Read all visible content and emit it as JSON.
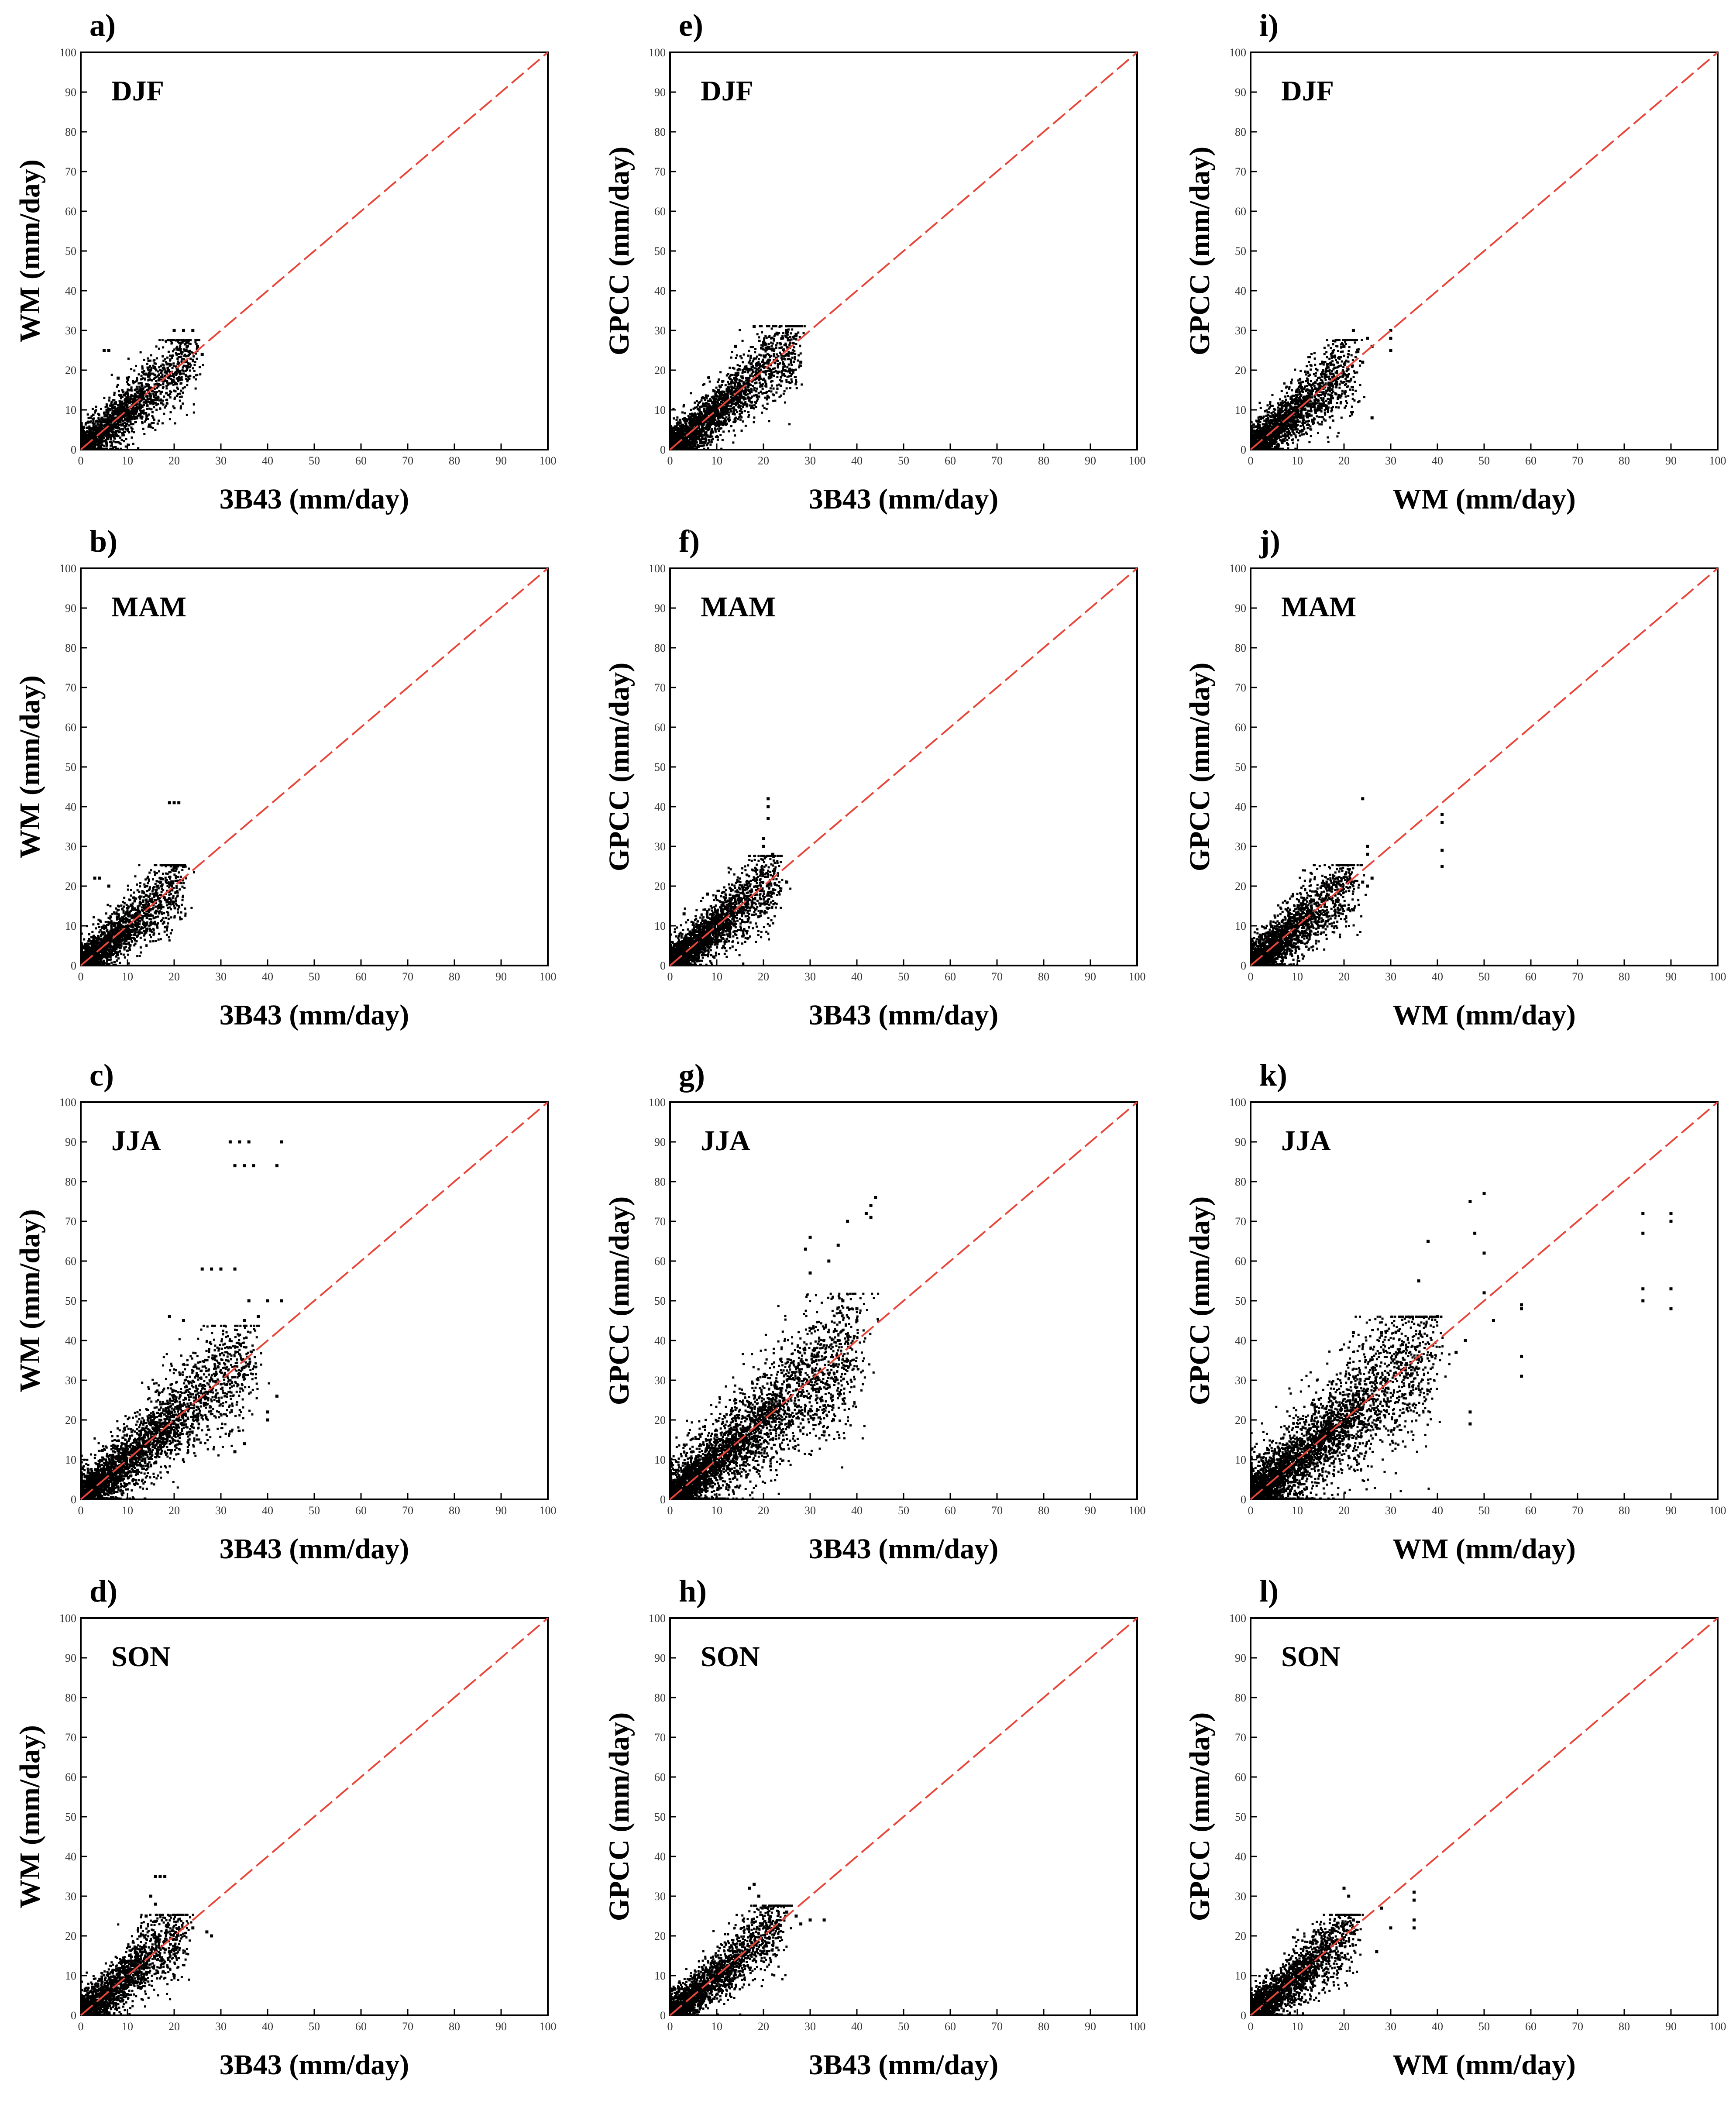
{
  "figure": {
    "description_units": "mm/day",
    "identity_line_color": "#e8463a",
    "point_color": "#000000"
  },
  "chart_data": [
    {
      "type": "scatter",
      "panel_label": "a)",
      "season": "DJF",
      "xlabel": "3B43 (mm/day)",
      "ylabel": "WM (mm/day)",
      "xlim": [
        0,
        100
      ],
      "ylim": [
        0,
        100
      ],
      "xticks": [
        "0",
        "10",
        "20",
        "30",
        "40",
        "50",
        "60",
        "70",
        "80",
        "90",
        "100"
      ],
      "yticks": [
        "0",
        "10",
        "20",
        "30",
        "40",
        "50",
        "60",
        "70",
        "80",
        "90",
        "100"
      ],
      "identity_line": true,
      "cloud": {
        "max_x": 24,
        "max_y": 24,
        "spread": 3.5,
        "points": 1400
      },
      "notable_points": [
        [
          20,
          30
        ],
        [
          22,
          30
        ],
        [
          24,
          30
        ],
        [
          5,
          25
        ],
        [
          6,
          25
        ],
        [
          25,
          26
        ],
        [
          26,
          24
        ],
        [
          14,
          19
        ],
        [
          8,
          18
        ],
        [
          10,
          18
        ]
      ]
    },
    {
      "type": "scatter",
      "panel_label": "b)",
      "season": "MAM",
      "xlabel": "3B43 (mm/day)",
      "ylabel": "WM (mm/day)",
      "xlim": [
        0,
        100
      ],
      "ylim": [
        0,
        100
      ],
      "xticks": [
        "0",
        "10",
        "20",
        "30",
        "40",
        "50",
        "60",
        "70",
        "80",
        "90",
        "100"
      ],
      "yticks": [
        "0",
        "10",
        "20",
        "30",
        "40",
        "50",
        "60",
        "70",
        "80",
        "90",
        "100"
      ],
      "identity_line": true,
      "cloud": {
        "max_x": 22,
        "max_y": 22,
        "spread": 3.2,
        "points": 1400
      },
      "notable_points": [
        [
          19,
          41
        ],
        [
          20,
          41
        ],
        [
          21,
          41
        ],
        [
          3,
          22
        ],
        [
          4,
          22
        ],
        [
          6,
          20
        ],
        [
          20,
          25
        ],
        [
          22,
          25
        ],
        [
          21,
          21
        ]
      ]
    },
    {
      "type": "scatter",
      "panel_label": "c)",
      "season": "JJA",
      "xlabel": "3B43 (mm/day)",
      "ylabel": "WM (mm/day)",
      "xlim": [
        0,
        100
      ],
      "ylim": [
        0,
        100
      ],
      "xticks": [
        "0",
        "10",
        "20",
        "30",
        "40",
        "50",
        "60",
        "70",
        "80",
        "90",
        "100"
      ],
      "yticks": [
        "0",
        "10",
        "20",
        "30",
        "40",
        "50",
        "60",
        "70",
        "80",
        "90",
        "100"
      ],
      "identity_line": true,
      "cloud": {
        "max_x": 36,
        "max_y": 38,
        "spread": 5.0,
        "points": 2200
      },
      "notable_points": [
        [
          32,
          90
        ],
        [
          34,
          90
        ],
        [
          36,
          90
        ],
        [
          43,
          90
        ],
        [
          33,
          84
        ],
        [
          35,
          84
        ],
        [
          37,
          84
        ],
        [
          42,
          84
        ],
        [
          26,
          58
        ],
        [
          28,
          58
        ],
        [
          30,
          58
        ],
        [
          33,
          58
        ],
        [
          36,
          50
        ],
        [
          40,
          50
        ],
        [
          43,
          50
        ],
        [
          19,
          46
        ],
        [
          38,
          46
        ],
        [
          35,
          45
        ],
        [
          42,
          26
        ],
        [
          40,
          22
        ],
        [
          35,
          14
        ],
        [
          40,
          20
        ],
        [
          33,
          12
        ],
        [
          22,
          45
        ]
      ]
    },
    {
      "type": "scatter",
      "panel_label": "d)",
      "season": "SON",
      "xlabel": "3B43 (mm/day)",
      "ylabel": "WM (mm/day)",
      "xlim": [
        0,
        100
      ],
      "ylim": [
        0,
        100
      ],
      "xticks": [
        "0",
        "10",
        "20",
        "30",
        "40",
        "50",
        "60",
        "70",
        "80",
        "90",
        "100"
      ],
      "yticks": [
        "0",
        "10",
        "20",
        "30",
        "40",
        "50",
        "60",
        "70",
        "80",
        "90",
        "100"
      ],
      "identity_line": true,
      "cloud": {
        "max_x": 22,
        "max_y": 22,
        "spread": 3.5,
        "points": 1400
      },
      "notable_points": [
        [
          16,
          35
        ],
        [
          17,
          35
        ],
        [
          18,
          35
        ],
        [
          15,
          30
        ],
        [
          16,
          28
        ],
        [
          24,
          22
        ],
        [
          27,
          21
        ],
        [
          28,
          20
        ],
        [
          20,
          10
        ],
        [
          14,
          25
        ]
      ]
    },
    {
      "type": "scatter",
      "panel_label": "e)",
      "season": "DJF",
      "xlabel": "3B43 (mm/day)",
      "ylabel": "GPCC (mm/day)",
      "xlim": [
        0,
        100
      ],
      "ylim": [
        0,
        100
      ],
      "xticks": [
        "0",
        "10",
        "20",
        "30",
        "40",
        "50",
        "60",
        "70",
        "80",
        "90",
        "100"
      ],
      "yticks": [
        "0",
        "10",
        "20",
        "30",
        "40",
        "50",
        "60",
        "70",
        "80",
        "90",
        "100"
      ],
      "identity_line": true,
      "cloud": {
        "max_x": 27,
        "max_y": 27,
        "spread": 3.6,
        "points": 1700
      },
      "notable_points": [
        [
          18,
          31
        ],
        [
          25,
          30
        ],
        [
          27,
          29
        ],
        [
          24,
          28
        ],
        [
          14,
          26
        ],
        [
          28,
          22
        ],
        [
          26,
          20
        ],
        [
          20,
          27
        ]
      ]
    },
    {
      "type": "scatter",
      "panel_label": "f)",
      "season": "MAM",
      "xlabel": "3B43 (mm/day)",
      "ylabel": "GPCC (mm/day)",
      "xlim": [
        0,
        100
      ],
      "ylim": [
        0,
        100
      ],
      "xticks": [
        "0",
        "10",
        "20",
        "30",
        "40",
        "50",
        "60",
        "70",
        "80",
        "90",
        "100"
      ],
      "yticks": [
        "0",
        "10",
        "20",
        "30",
        "40",
        "50",
        "60",
        "70",
        "80",
        "90",
        "100"
      ],
      "identity_line": true,
      "cloud": {
        "max_x": 23,
        "max_y": 24,
        "spread": 3.3,
        "points": 1600
      },
      "notable_points": [
        [
          21,
          42
        ],
        [
          21,
          40
        ],
        [
          21,
          37
        ],
        [
          20,
          32
        ],
        [
          20,
          30
        ],
        [
          22,
          28
        ],
        [
          25,
          21
        ],
        [
          3,
          13
        ],
        [
          8,
          18
        ]
      ]
    },
    {
      "type": "scatter",
      "panel_label": "g)",
      "season": "JJA",
      "xlabel": "3B43 (mm/day)",
      "ylabel": "GPCC (mm/day)",
      "xlim": [
        0,
        100
      ],
      "ylim": [
        0,
        100
      ],
      "xticks": [
        "0",
        "10",
        "20",
        "30",
        "40",
        "50",
        "60",
        "70",
        "80",
        "90",
        "100"
      ],
      "yticks": [
        "0",
        "10",
        "20",
        "30",
        "40",
        "50",
        "60",
        "70",
        "80",
        "90",
        "100"
      ],
      "identity_line": true,
      "cloud": {
        "max_x": 40,
        "max_y": 45,
        "spread": 6.2,
        "points": 2600
      },
      "notable_points": [
        [
          44,
          76
        ],
        [
          43,
          74
        ],
        [
          42,
          72
        ],
        [
          43,
          71
        ],
        [
          38,
          70
        ],
        [
          30,
          66
        ],
        [
          36,
          64
        ],
        [
          34,
          60
        ],
        [
          29,
          63
        ],
        [
          30,
          57
        ],
        [
          37,
          50
        ],
        [
          40,
          48
        ],
        [
          36,
          40
        ],
        [
          38,
          35
        ],
        [
          33,
          17
        ],
        [
          35,
          20
        ],
        [
          40,
          45
        ]
      ]
    },
    {
      "type": "scatter",
      "panel_label": "h)",
      "season": "SON",
      "xlabel": "3B43 (mm/day)",
      "ylabel": "GPCC (mm/day)",
      "xlim": [
        0,
        100
      ],
      "ylim": [
        0,
        100
      ],
      "xticks": [
        "0",
        "10",
        "20",
        "30",
        "40",
        "50",
        "60",
        "70",
        "80",
        "90",
        "100"
      ],
      "yticks": [
        "0",
        "10",
        "20",
        "30",
        "40",
        "50",
        "60",
        "70",
        "80",
        "90",
        "100"
      ],
      "identity_line": true,
      "cloud": {
        "max_x": 24,
        "max_y": 24,
        "spread": 3.2,
        "points": 1500
      },
      "notable_points": [
        [
          18,
          33
        ],
        [
          17,
          32
        ],
        [
          19,
          30
        ],
        [
          27,
          25
        ],
        [
          30,
          24
        ],
        [
          33,
          24
        ],
        [
          25,
          26
        ],
        [
          28,
          23
        ]
      ]
    },
    {
      "type": "scatter",
      "panel_label": "i)",
      "season": "DJF",
      "xlabel": "WM (mm/day)",
      "ylabel": "GPCC (mm/day)",
      "xlim": [
        0,
        100
      ],
      "ylim": [
        0,
        100
      ],
      "xticks": [
        "0",
        "10",
        "20",
        "30",
        "40",
        "50",
        "60",
        "70",
        "80",
        "90",
        "100"
      ],
      "yticks": [
        "0",
        "10",
        "20",
        "30",
        "40",
        "50",
        "60",
        "70",
        "80",
        "90",
        "100"
      ],
      "identity_line": true,
      "cloud": {
        "max_x": 22,
        "max_y": 24,
        "spread": 3.6,
        "points": 1500
      },
      "notable_points": [
        [
          30,
          30
        ],
        [
          30,
          28
        ],
        [
          30,
          25
        ],
        [
          25,
          28
        ],
        [
          26,
          26
        ],
        [
          22,
          30
        ],
        [
          26,
          8
        ],
        [
          20,
          26
        ],
        [
          24,
          22
        ]
      ]
    },
    {
      "type": "scatter",
      "panel_label": "j)",
      "season": "MAM",
      "xlabel": "WM (mm/day)",
      "ylabel": "GPCC (mm/day)",
      "xlim": [
        0,
        100
      ],
      "ylim": [
        0,
        100
      ],
      "xticks": [
        "0",
        "10",
        "20",
        "30",
        "40",
        "50",
        "60",
        "70",
        "80",
        "90",
        "100"
      ],
      "yticks": [
        "0",
        "10",
        "20",
        "30",
        "40",
        "50",
        "60",
        "70",
        "80",
        "90",
        "100"
      ],
      "identity_line": true,
      "cloud": {
        "max_x": 22,
        "max_y": 22,
        "spread": 3.5,
        "points": 1500
      },
      "notable_points": [
        [
          24,
          42
        ],
        [
          41,
          38
        ],
        [
          41,
          36
        ],
        [
          41,
          29
        ],
        [
          41,
          25
        ],
        [
          25,
          30
        ],
        [
          25,
          28
        ],
        [
          26,
          22
        ],
        [
          24,
          21
        ],
        [
          22,
          14
        ],
        [
          25,
          20
        ]
      ]
    },
    {
      "type": "scatter",
      "panel_label": "k)",
      "season": "JJA",
      "xlabel": "WM (mm/day)",
      "ylabel": "GPCC (mm/day)",
      "xlim": [
        0,
        100
      ],
      "ylim": [
        0,
        100
      ],
      "xticks": [
        "0",
        "10",
        "20",
        "30",
        "40",
        "50",
        "60",
        "70",
        "80",
        "90",
        "100"
      ],
      "yticks": [
        "0",
        "10",
        "20",
        "30",
        "40",
        "50",
        "60",
        "70",
        "80",
        "90",
        "100"
      ],
      "identity_line": true,
      "cloud": {
        "max_x": 38,
        "max_y": 40,
        "spread": 6.5,
        "points": 2600
      },
      "notable_points": [
        [
          84,
          72
        ],
        [
          84,
          67
        ],
        [
          84,
          53
        ],
        [
          84,
          50
        ],
        [
          90,
          72
        ],
        [
          90,
          70
        ],
        [
          90,
          53
        ],
        [
          90,
          48
        ],
        [
          58,
          49
        ],
        [
          58,
          48
        ],
        [
          58,
          36
        ],
        [
          58,
          31
        ],
        [
          50,
          77
        ],
        [
          47,
          75
        ],
        [
          48,
          67
        ],
        [
          50,
          62
        ],
        [
          50,
          52
        ],
        [
          52,
          45
        ],
        [
          46,
          40
        ],
        [
          47,
          22
        ],
        [
          47,
          19
        ],
        [
          44,
          37
        ],
        [
          40,
          46
        ],
        [
          36,
          55
        ],
        [
          38,
          65
        ],
        [
          28,
          42
        ],
        [
          22,
          42
        ]
      ]
    },
    {
      "type": "scatter",
      "panel_label": "l)",
      "season": "SON",
      "xlabel": "WM (mm/day)",
      "ylabel": "GPCC (mm/day)",
      "xlim": [
        0,
        100
      ],
      "ylim": [
        0,
        100
      ],
      "xticks": [
        "0",
        "10",
        "20",
        "30",
        "40",
        "50",
        "60",
        "70",
        "80",
        "90",
        "100"
      ],
      "yticks": [
        "0",
        "10",
        "20",
        "30",
        "40",
        "50",
        "60",
        "70",
        "80",
        "90",
        "100"
      ],
      "identity_line": true,
      "cloud": {
        "max_x": 22,
        "max_y": 22,
        "spread": 3.4,
        "points": 1500
      },
      "notable_points": [
        [
          35,
          31
        ],
        [
          35,
          29
        ],
        [
          35,
          24
        ],
        [
          35,
          22
        ],
        [
          20,
          32
        ],
        [
          21,
          30
        ],
        [
          28,
          27
        ],
        [
          30,
          22
        ],
        [
          27,
          16
        ],
        [
          22,
          24
        ]
      ]
    }
  ]
}
